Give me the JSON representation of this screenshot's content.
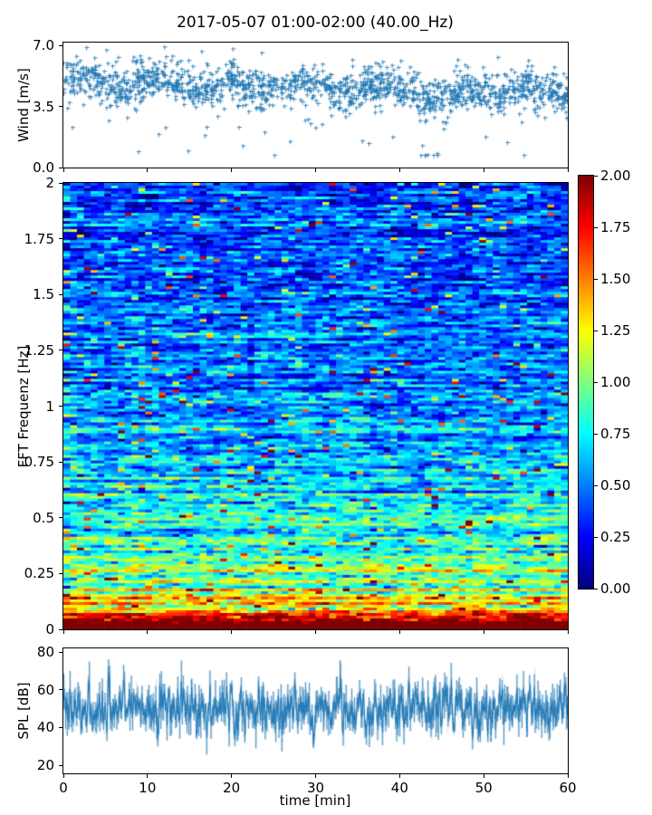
{
  "title": "2017-05-07 01:00-02:00 (40.00_Hz)",
  "chart_data": [
    {
      "type": "scatter",
      "name": "wind-speed-vs-time",
      "ylabel": "Wind [m/s]",
      "x_range": [
        0,
        60
      ],
      "y_range": [
        0,
        7.17
      ],
      "ytick_values": [
        0,
        3.5,
        7
      ],
      "ytick_labels": [
        "0.0",
        "3.5",
        "7.0"
      ],
      "xtick_values": [
        0,
        10,
        20,
        30,
        40,
        50,
        60
      ],
      "marker": "plus",
      "color": "#1f77b4",
      "n_points": 1700,
      "summary": {
        "mean_start": 4.9,
        "mean_end": 4.3,
        "std": 0.55,
        "low_outlier_fraction": 0.03,
        "dip_interval_min": [
          43,
          48
        ],
        "min": 0.7,
        "max": 6.95
      }
    },
    {
      "type": "heatmap",
      "name": "fft-spectrogram",
      "ylabel": "FFT Frequenz [Hz]",
      "x_range": [
        0,
        60
      ],
      "y_range": [
        0,
        2
      ],
      "ytick_values": [
        0,
        0.25,
        0.5,
        0.75,
        1,
        1.25,
        1.5,
        1.75,
        2
      ],
      "ytick_labels": [
        "0",
        "0.25",
        "0.5",
        "0.75",
        "1",
        "1.25",
        "1.5",
        "1.75",
        "2"
      ],
      "xtick_values": [
        0,
        10,
        20,
        30,
        40,
        50,
        60
      ],
      "colormap": "jet",
      "clim": [
        0,
        2
      ],
      "grid_size": {
        "nx": 74,
        "ny": 164
      },
      "freq_profile": [
        [
          0,
          2.1
        ],
        [
          0.02,
          1.9
        ],
        [
          0.05,
          1.55
        ],
        [
          0.1,
          1.3
        ],
        [
          0.18,
          1.1
        ],
        [
          0.28,
          0.95
        ],
        [
          0.4,
          0.82
        ],
        [
          0.55,
          0.7
        ],
        [
          0.75,
          0.6
        ],
        [
          1.0,
          0.52
        ],
        [
          1.3,
          0.46
        ],
        [
          1.7,
          0.42
        ],
        [
          2.0,
          0.4
        ]
      ],
      "noise_std": 0.28,
      "colorbar": {
        "tick_values": [
          0,
          0.25,
          0.5,
          0.75,
          1,
          1.25,
          1.5,
          1.75,
          2
        ],
        "tick_labels": [
          "0.00",
          "0.25",
          "0.50",
          "0.75",
          "1.00",
          "1.25",
          "1.50",
          "1.75",
          "2.00"
        ]
      }
    },
    {
      "type": "line",
      "name": "spl-vs-time",
      "ylabel": "SPL [dB]",
      "xlabel": "time [min]",
      "x_range": [
        0,
        60
      ],
      "y_range": [
        15.7,
        82
      ],
      "ytick_values": [
        20,
        40,
        60,
        80
      ],
      "ytick_labels": [
        "20",
        "40",
        "60",
        "80"
      ],
      "xtick_values": [
        0,
        10,
        20,
        30,
        40,
        50,
        60
      ],
      "xtick_labels": [
        "0",
        "10",
        "20",
        "30",
        "40",
        "50",
        "60"
      ],
      "color": "#1f77b4",
      "n_points": 3000,
      "summary": {
        "mean": 50,
        "std": 7.5,
        "min": 25,
        "max": 80,
        "peak_time_min": 3
      }
    }
  ]
}
